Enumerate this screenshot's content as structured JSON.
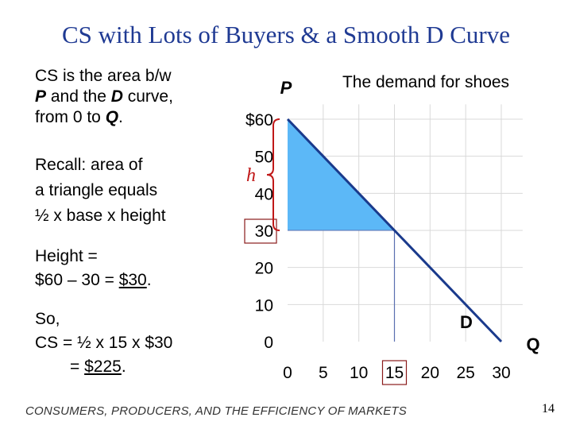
{
  "title": "CS with Lots of Buyers & a Smooth D Curve",
  "left_text": {
    "definition": [
      "CS is the area b/w",
      "P",
      " and the ",
      "D",
      " curve,",
      "from 0 to ",
      "Q",
      "."
    ],
    "recall": [
      "Recall:  area of",
      "a triangle equals",
      "½ x base x height"
    ],
    "height": [
      "Height =",
      "$60 – 30 = ",
      "$30",
      "."
    ],
    "so": [
      "So,",
      "CS = ½ x 15 x $30",
      "= ",
      "$225",
      "."
    ]
  },
  "chart_data": {
    "type": "line",
    "title": "The demand for shoes",
    "xlabel": "Q",
    "ylabel": "P",
    "xlim": [
      0,
      33
    ],
    "ylim": [
      0,
      64
    ],
    "x_ticks": [
      "0",
      "5",
      "10",
      "15",
      "20",
      "25",
      "30"
    ],
    "y_ticks": [
      "0",
      "10",
      "20",
      "30",
      "40",
      "50",
      "$60"
    ],
    "grid": true,
    "series": [
      {
        "name": "D",
        "x": [
          0,
          30
        ],
        "y": [
          60,
          0
        ]
      }
    ],
    "shaded_area": {
      "x": [
        0,
        15,
        0
      ],
      "y": [
        60,
        30,
        30
      ]
    },
    "price_guide": {
      "y": 30,
      "x_from": 0,
      "x_to": 15
    },
    "quantity_guide": {
      "x": 15,
      "y_from": 0,
      "y_to": 30
    },
    "brace_label": "h",
    "highlighted_ticks": {
      "x": "15",
      "y": "30"
    }
  },
  "colors": {
    "title": "#1f3a93",
    "curve": "#1a3a8c",
    "shade": "#5cb8f7",
    "brace": "#c01818",
    "grid": "#d9d9d9",
    "guide": "#5a6fb0"
  },
  "footer": "CONSUMERS, PRODUCERS, AND THE EFFICIENCY OF MARKETS",
  "page_number": "14"
}
